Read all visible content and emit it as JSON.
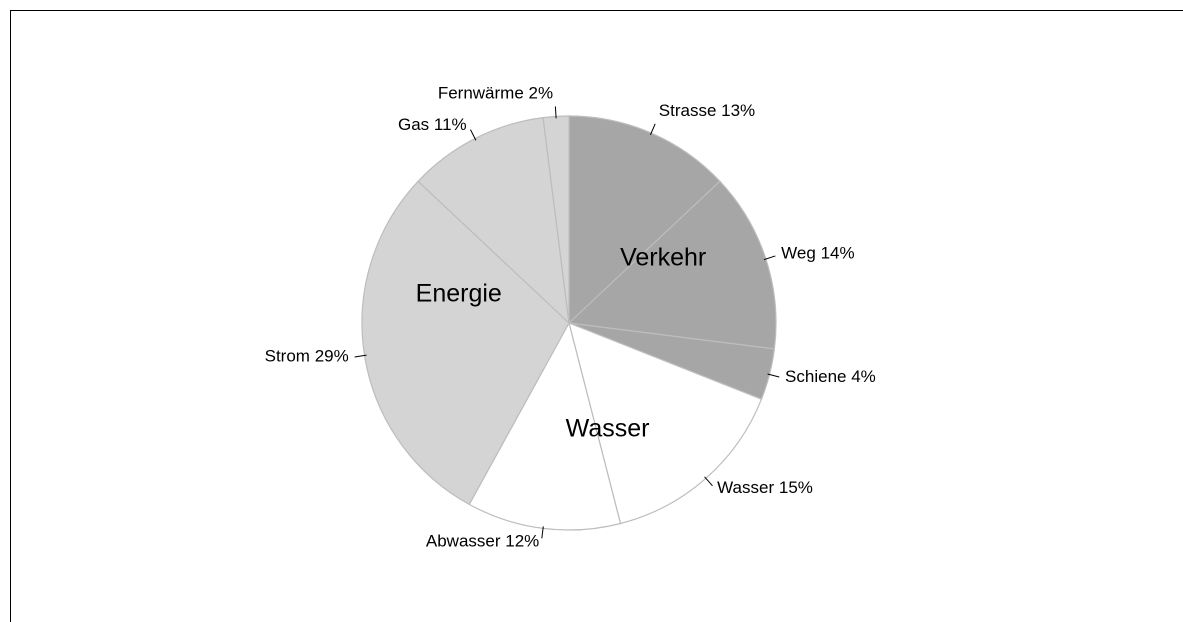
{
  "chart_data": {
    "type": "pie",
    "categories": [
      "Strasse",
      "Weg",
      "Schiene",
      "Wasser",
      "Abwasser",
      "Strom",
      "Gas",
      "Fernwärme"
    ],
    "values": [
      13,
      14,
      4,
      15,
      12,
      29,
      11,
      2
    ],
    "value_labels": [
      "13%",
      "14%",
      "4%",
      "15%",
      "12%",
      "29%",
      "11%",
      "2%"
    ],
    "groups": [
      {
        "name": "Verkehr",
        "color": "#a6a6a6",
        "categories": [
          "Strasse",
          "Weg",
          "Schiene"
        ]
      },
      {
        "name": "Wasser",
        "color": "#ffffff",
        "categories": [
          "Wasser",
          "Abwasser"
        ]
      },
      {
        "name": "Energie",
        "color": "#d4d4d4",
        "categories": [
          "Strom",
          "Gas",
          "Fernwärme"
        ]
      }
    ]
  }
}
